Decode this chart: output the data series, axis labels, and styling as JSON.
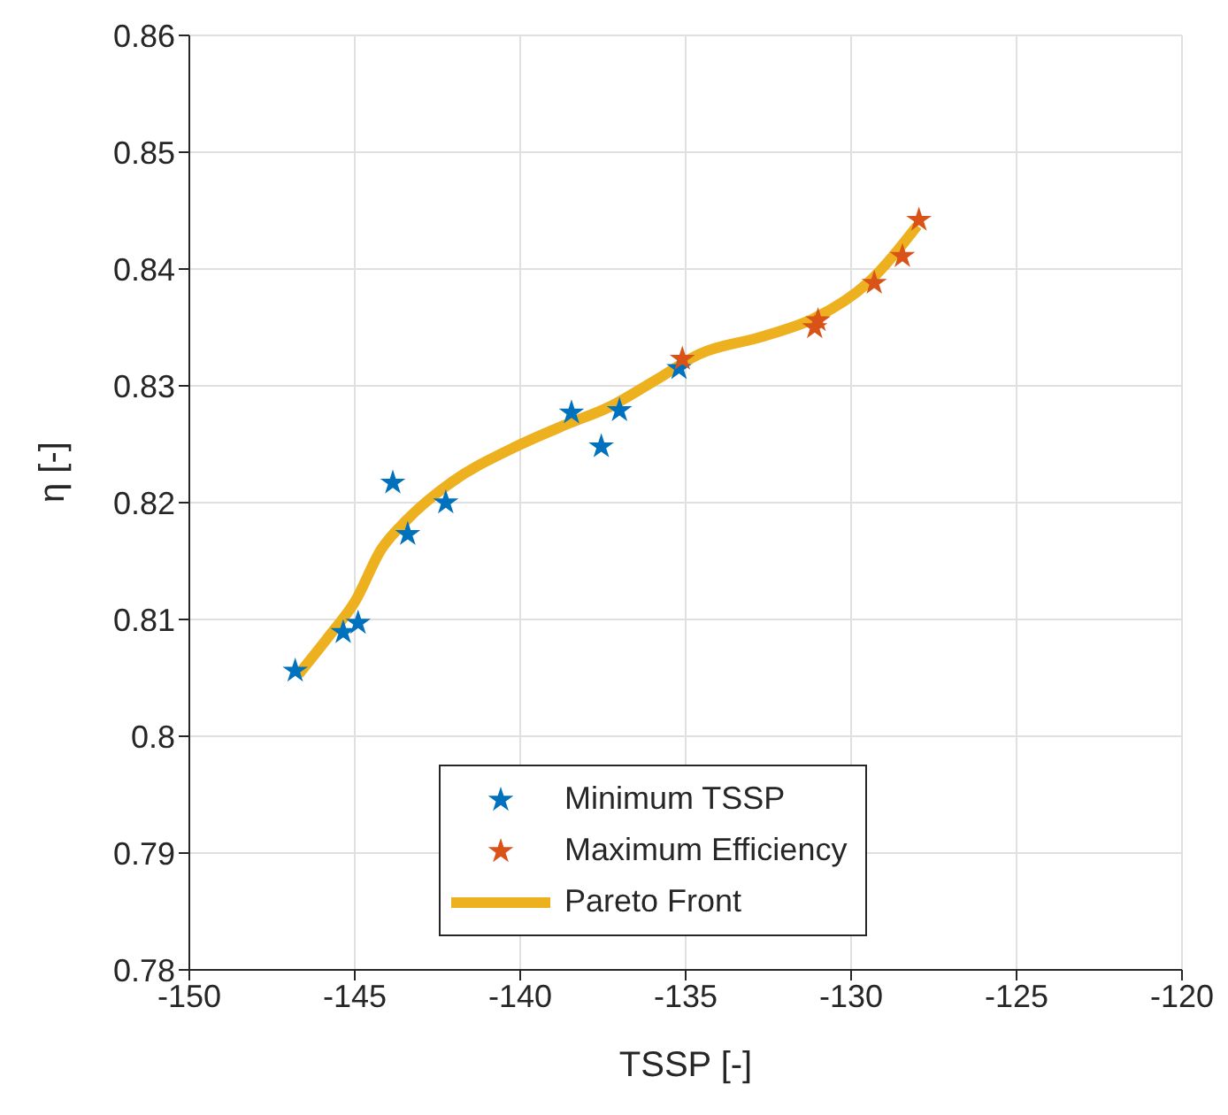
{
  "chart_data": {
    "type": "scatter",
    "xlabel": "TSSP [-]",
    "ylabel": "η [-]",
    "xlim": [
      -150,
      -120
    ],
    "xticks": [
      -150,
      -145,
      -140,
      -135,
      -130,
      -125,
      -120
    ],
    "ylim": [
      0.78,
      0.86
    ],
    "yticks": [
      0.78,
      0.79,
      0.8,
      0.81,
      0.82,
      0.83,
      0.84,
      0.85,
      0.86
    ],
    "grid": true,
    "legend": "bottom",
    "series": [
      {
        "name": "Minimum TSSP",
        "color": "#0072bd",
        "marker": "star",
        "x": [
          -146.8,
          -145.35,
          -144.9,
          -143.85,
          -143.4,
          -142.25,
          -138.45,
          -137.55,
          -137.0,
          -135.2
        ],
        "values": [
          0.8056,
          0.8089,
          0.8097,
          0.8217,
          0.8173,
          0.82,
          0.8277,
          0.8248,
          0.8279,
          0.8315
        ]
      },
      {
        "name": "Maximum Efficiency",
        "color": "#d95319",
        "marker": "star",
        "x": [
          -135.1,
          -131.1,
          -131.0,
          -129.3,
          -128.45,
          -127.95
        ],
        "values": [
          0.8323,
          0.835,
          0.8356,
          0.8388,
          0.8411,
          0.8442
        ]
      },
      {
        "name": "Pareto Front",
        "color": "#edb120",
        "type": "line",
        "x": [
          -146.7,
          -145.8,
          -145.0,
          -144.2,
          -143.4,
          -142.1,
          -140.2,
          -138.6,
          -137.3,
          -135.9,
          -134.6,
          -132.7,
          -131.1,
          -129.5,
          -128.0
        ],
        "values": [
          0.8053,
          0.8085,
          0.8115,
          0.816,
          0.8186,
          0.8217,
          0.8247,
          0.8267,
          0.8282,
          0.8305,
          0.8327,
          0.8342,
          0.8358,
          0.8388,
          0.8437
        ]
      }
    ]
  }
}
